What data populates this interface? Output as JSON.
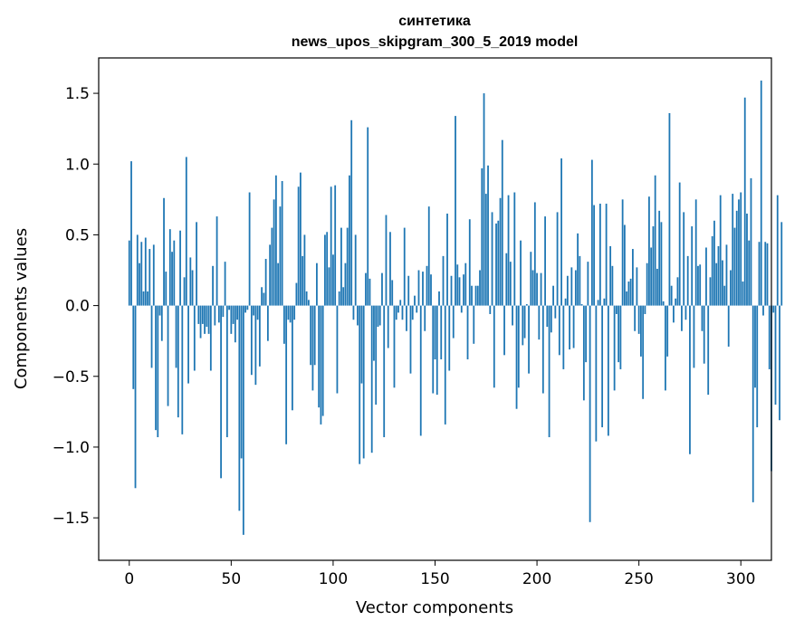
{
  "chart_data": {
    "type": "bar",
    "title_line1": "синтетика",
    "title_line2": "news_upos_skipgram_300_5_2019 model",
    "xlabel": "Vector components",
    "ylabel": "Components values",
    "xlim": [
      -15,
      315
    ],
    "ylim": [
      -1.8,
      1.75
    ],
    "xticks": [
      0,
      50,
      100,
      150,
      200,
      250,
      300
    ],
    "xtick_labels": [
      "0",
      "50",
      "100",
      "150",
      "200",
      "250",
      "300"
    ],
    "yticks": [
      -1.5,
      -1.0,
      -0.5,
      0.0,
      0.5,
      1.0,
      1.5
    ],
    "ytick_labels": [
      "−1.5",
      "−1.0",
      "−0.5",
      "0.0",
      "0.5",
      "1.0",
      "1.5"
    ],
    "bar_color": "#1f77b4",
    "values": [
      0.46,
      1.02,
      -0.59,
      -1.29,
      0.5,
      0.3,
      0.45,
      0.1,
      0.48,
      0.1,
      0.4,
      -0.44,
      0.43,
      -0.88,
      -0.93,
      -0.07,
      -0.25,
      0.76,
      0.24,
      -0.71,
      0.54,
      0.38,
      0.46,
      -0.44,
      -0.79,
      0.53,
      -0.91,
      0.2,
      1.05,
      -0.55,
      0.34,
      0.25,
      -0.46,
      0.59,
      -0.13,
      -0.23,
      -0.13,
      -0.2,
      -0.15,
      -0.2,
      -0.46,
      0.28,
      -0.14,
      0.63,
      -0.12,
      -1.22,
      -0.08,
      0.31,
      -0.93,
      -0.03,
      -0.2,
      -0.13,
      -0.26,
      -0.1,
      -1.45,
      -1.08,
      -1.62,
      -0.05,
      -0.03,
      0.8,
      -0.49,
      -0.07,
      -0.56,
      -0.1,
      -0.43,
      0.13,
      0.09,
      0.33,
      -0.25,
      0.43,
      0.55,
      0.75,
      0.92,
      0.3,
      0.7,
      0.88,
      -0.27,
      -0.98,
      -0.1,
      -0.12,
      -0.74,
      -0.1,
      0.16,
      0.84,
      0.94,
      0.35,
      0.5,
      0.1,
      0.04,
      -0.42,
      -0.6,
      -0.42,
      0.3,
      -0.72,
      -0.84,
      -0.78,
      0.5,
      0.52,
      0.27,
      0.84,
      0.36,
      0.85,
      -0.62,
      0.1,
      0.55,
      0.13,
      0.3,
      0.55,
      0.92,
      1.31,
      -0.1,
      0.5,
      -0.14,
      -1.12,
      -0.55,
      -1.08,
      0.23,
      1.26,
      0.19,
      -1.04,
      -0.39,
      -0.7,
      -0.15,
      -0.14,
      0.23,
      -0.93,
      0.64,
      -0.3,
      0.52,
      0.18,
      -0.58,
      -0.1,
      -0.05,
      0.04,
      -0.1,
      0.55,
      -0.18,
      0.21,
      -0.48,
      -0.1,
      0.07,
      -0.05,
      0.25,
      -0.92,
      0.24,
      -0.18,
      0.28,
      0.7,
      0.22,
      -0.62,
      -0.38,
      -0.63,
      0.1,
      -0.38,
      0.35,
      -0.84,
      0.65,
      -0.46,
      0.21,
      -0.23,
      1.34,
      0.29,
      0.2,
      -0.05,
      0.22,
      0.3,
      -0.38,
      0.61,
      0.14,
      -0.27,
      0.14,
      0.14,
      0.25,
      0.97,
      1.5,
      0.79,
      0.99,
      -0.06,
      0.66,
      -0.58,
      0.58,
      0.6,
      0.76,
      1.17,
      -0.35,
      0.37,
      0.78,
      0.31,
      -0.14,
      0.8,
      -0.73,
      -0.58,
      0.46,
      -0.28,
      -0.23,
      0.01,
      -0.48,
      0.38,
      0.25,
      0.73,
      0.23,
      -0.24,
      0.23,
      -0.62,
      0.63,
      -0.15,
      -0.93,
      -0.19,
      0.14,
      -0.09,
      0.66,
      -0.35,
      1.04,
      -0.45,
      0.05,
      0.21,
      -0.31,
      0.27,
      -0.3,
      0.25,
      0.51,
      0.35,
      0.01,
      -0.67,
      -0.4,
      0.31,
      -1.53,
      1.03,
      0.71,
      -0.96,
      0.04,
      0.72,
      -0.86,
      0.05,
      0.72,
      -0.92,
      0.42,
      0.28,
      -0.6,
      -0.06,
      -0.4,
      -0.45,
      0.75,
      0.57,
      0.1,
      0.17,
      0.19,
      0.4,
      -0.18,
      0.27,
      -0.2,
      -0.36,
      -0.66,
      -0.06,
      0.3,
      0.77,
      0.41,
      0.56,
      0.92,
      0.26,
      0.67,
      0.59,
      0.03,
      -0.6,
      -0.36,
      1.36,
      0.14,
      -0.12,
      0.05,
      0.2,
      0.87,
      -0.18,
      0.66,
      -0.1,
      0.35,
      -1.05,
      0.56,
      -0.44,
      0.75,
      0.28,
      0.29,
      -0.18,
      -0.41,
      0.41,
      -0.63,
      0.2,
      0.49,
      0.6,
      0.3,
      0.42,
      0.78,
      0.32,
      0.14,
      0.43,
      -0.29,
      0.25,
      0.79,
      0.55,
      0.67,
      0.75,
      0.8,
      0.17,
      1.47,
      0.65,
      0.46,
      0.9,
      -1.39,
      -0.58,
      -0.86,
      0.45,
      1.59,
      -0.07,
      0.45,
      0.44,
      -0.45,
      -1.17,
      -0.05,
      -0.7,
      0.78,
      -0.81,
      0.59
    ]
  }
}
